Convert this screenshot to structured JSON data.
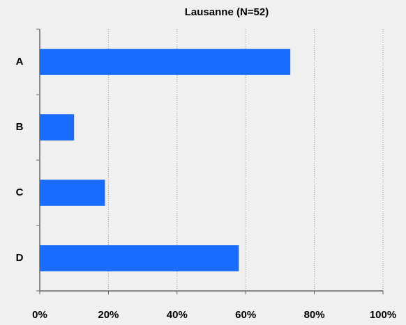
{
  "chart_data": {
    "type": "bar",
    "orientation": "horizontal",
    "title": "Lausanne (N=52)",
    "categories": [
      "A",
      "B",
      "C",
      "D"
    ],
    "values": [
      73,
      10,
      19,
      58
    ],
    "color": "#1a6cff",
    "xlim": [
      0,
      100
    ],
    "xticks": [
      {
        "value": 0,
        "label": "0%"
      },
      {
        "value": 20,
        "label": "20%"
      },
      {
        "value": 40,
        "label": "40%"
      },
      {
        "value": 60,
        "label": "60%"
      },
      {
        "value": 80,
        "label": "80%"
      },
      {
        "value": 100,
        "label": "100%"
      }
    ],
    "grid": true
  }
}
